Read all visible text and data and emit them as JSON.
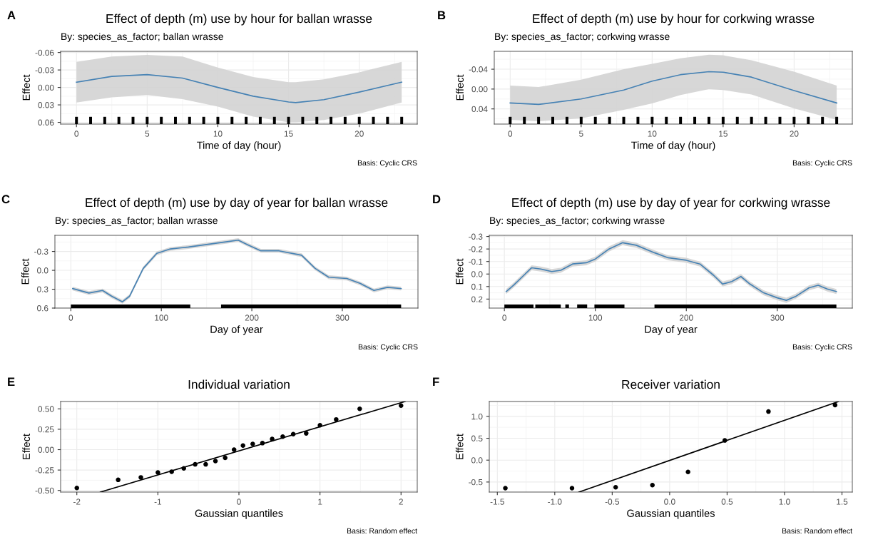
{
  "chart_data": [
    {
      "type": "line",
      "title": "Effect of depth (m) use by hour for ballan wrasse",
      "subtitle": "By: species_as_factor; ballan wrasse",
      "xlabel": "Time of day (hour)",
      "ylabel": "Effect",
      "annotations": [
        "A",
        "Basis: Cyclic CRS"
      ],
      "xlim": [
        -1.12,
        24.1
      ],
      "ylim": [
        0.063,
        -0.062
      ],
      "xticks": [
        0,
        5,
        10,
        15,
        20
      ],
      "yticks": [
        -0.06,
        -0.03,
        {
          "value": 0,
          "label": "0.00"
        },
        0.03,
        0.06
      ],
      "grid": true,
      "series": [
        {
          "color": "#4682b4",
          "x": [
            0,
            2.5,
            5,
            7.5,
            10,
            12.5,
            15,
            15.5,
            17.5,
            20,
            23
          ],
          "values": [
            -0.009,
            -0.019,
            -0.022,
            -0.016,
            0.0,
            0.015,
            0.025,
            0.026,
            0.021,
            0.008,
            -0.009
          ],
          "lower": [
            -0.044,
            -0.053,
            -0.056,
            -0.053,
            -0.034,
            -0.018,
            -0.009,
            -0.009,
            -0.014,
            -0.026,
            -0.044
          ],
          "upper": [
            0.026,
            0.017,
            0.013,
            0.02,
            0.033,
            0.05,
            0.06,
            0.06,
            0.056,
            0.045,
            0.026
          ]
        }
      ],
      "bands": [
        {
          "axis": "x",
          "from": -0.1,
          "to": 0.1,
          "color": "#000000"
        },
        {
          "axis": "x",
          "from": 0.9,
          "to": 1.1,
          "color": "#000000"
        },
        {
          "axis": "x",
          "from": 1.9,
          "to": 2.1,
          "color": "#000000"
        },
        {
          "axis": "x",
          "from": 2.9,
          "to": 3.1,
          "color": "#000000"
        },
        {
          "axis": "x",
          "from": 3.9,
          "to": 4.1,
          "color": "#000000"
        },
        {
          "axis": "x",
          "from": 4.9,
          "to": 5.1,
          "color": "#000000"
        },
        {
          "axis": "x",
          "from": 5.9,
          "to": 6.1,
          "color": "#000000"
        },
        {
          "axis": "x",
          "from": 6.9,
          "to": 7.1,
          "color": "#000000"
        },
        {
          "axis": "x",
          "from": 7.9,
          "to": 8.1,
          "color": "#000000"
        },
        {
          "axis": "x",
          "from": 8.9,
          "to": 9.1,
          "color": "#000000"
        },
        {
          "axis": "x",
          "from": 9.9,
          "to": 10.1,
          "color": "#000000"
        },
        {
          "axis": "x",
          "from": 10.9,
          "to": 11.1,
          "color": "#000000"
        },
        {
          "axis": "x",
          "from": 11.9,
          "to": 12.1,
          "color": "#000000"
        },
        {
          "axis": "x",
          "from": 12.9,
          "to": 13.1,
          "color": "#000000"
        },
        {
          "axis": "x",
          "from": 13.9,
          "to": 14.1,
          "color": "#000000"
        },
        {
          "axis": "x",
          "from": 14.9,
          "to": 15.1,
          "color": "#000000"
        },
        {
          "axis": "x",
          "from": 15.9,
          "to": 16.1,
          "color": "#000000"
        },
        {
          "axis": "x",
          "from": 16.9,
          "to": 17.1,
          "color": "#000000"
        },
        {
          "axis": "x",
          "from": 17.9,
          "to": 18.1,
          "color": "#000000"
        },
        {
          "axis": "x",
          "from": 18.9,
          "to": 19.1,
          "color": "#000000"
        },
        {
          "axis": "x",
          "from": 19.9,
          "to": 20.1,
          "color": "#000000"
        },
        {
          "axis": "x",
          "from": 20.9,
          "to": 21.1,
          "color": "#000000"
        },
        {
          "axis": "x",
          "from": 21.9,
          "to": 22.1,
          "color": "#000000"
        },
        {
          "axis": "x",
          "from": 22.9,
          "to": 23.1,
          "color": "#000000"
        }
      ]
    },
    {
      "type": "line",
      "title": "Effect of depth (m) use by hour for corkwing wrasse",
      "subtitle": "By: species_as_factor; corkwing wrasse",
      "xlabel": "Time of day (hour)",
      "ylabel": "Effect",
      "annotations": [
        "B",
        "Basis: Cyclic CRS"
      ],
      "xlim": [
        -1.12,
        24.1
      ],
      "ylim": [
        0.0706,
        -0.076
      ],
      "xticks": [
        0,
        5,
        10,
        15,
        20
      ],
      "yticks": [
        -0.04,
        {
          "value": 0,
          "label": "0.00"
        },
        0.04
      ],
      "grid": true,
      "series": [
        {
          "color": "#4682b4",
          "x": [
            0,
            2,
            5,
            8,
            10,
            12,
            14,
            15,
            17,
            20,
            23
          ],
          "values": [
            0.028,
            0.031,
            0.02,
            0.002,
            -0.016,
            -0.029,
            -0.035,
            -0.034,
            -0.024,
            0.003,
            0.028
          ],
          "lower": [
            -0.007,
            -0.004,
            -0.019,
            -0.04,
            -0.051,
            -0.062,
            -0.069,
            -0.068,
            -0.058,
            -0.035,
            -0.007
          ],
          "upper": [
            0.062,
            0.065,
            0.059,
            0.042,
            0.029,
            0.012,
            0.0,
            0.002,
            0.011,
            0.039,
            0.062
          ]
        }
      ],
      "bands": [
        {
          "axis": "x",
          "from": -0.1,
          "to": 0.1,
          "color": "#000000"
        },
        {
          "axis": "x",
          "from": 0.9,
          "to": 1.1,
          "color": "#000000"
        },
        {
          "axis": "x",
          "from": 1.9,
          "to": 2.1,
          "color": "#000000"
        },
        {
          "axis": "x",
          "from": 2.9,
          "to": 3.1,
          "color": "#000000"
        },
        {
          "axis": "x",
          "from": 3.9,
          "to": 4.1,
          "color": "#000000"
        },
        {
          "axis": "x",
          "from": 4.9,
          "to": 5.1,
          "color": "#000000"
        },
        {
          "axis": "x",
          "from": 5.9,
          "to": 6.1,
          "color": "#000000"
        },
        {
          "axis": "x",
          "from": 6.9,
          "to": 7.1,
          "color": "#000000"
        },
        {
          "axis": "x",
          "from": 7.9,
          "to": 8.1,
          "color": "#000000"
        },
        {
          "axis": "x",
          "from": 8.9,
          "to": 9.1,
          "color": "#000000"
        },
        {
          "axis": "x",
          "from": 9.9,
          "to": 10.1,
          "color": "#000000"
        },
        {
          "axis": "x",
          "from": 10.9,
          "to": 11.1,
          "color": "#000000"
        },
        {
          "axis": "x",
          "from": 11.9,
          "to": 12.1,
          "color": "#000000"
        },
        {
          "axis": "x",
          "from": 12.9,
          "to": 13.1,
          "color": "#000000"
        },
        {
          "axis": "x",
          "from": 13.9,
          "to": 14.1,
          "color": "#000000"
        },
        {
          "axis": "x",
          "from": 14.9,
          "to": 15.1,
          "color": "#000000"
        },
        {
          "axis": "x",
          "from": 15.9,
          "to": 16.1,
          "color": "#000000"
        },
        {
          "axis": "x",
          "from": 16.9,
          "to": 17.1,
          "color": "#000000"
        },
        {
          "axis": "x",
          "from": 17.9,
          "to": 18.1,
          "color": "#000000"
        },
        {
          "axis": "x",
          "from": 18.9,
          "to": 19.1,
          "color": "#000000"
        },
        {
          "axis": "x",
          "from": 19.9,
          "to": 20.1,
          "color": "#000000"
        },
        {
          "axis": "x",
          "from": 20.9,
          "to": 21.1,
          "color": "#000000"
        },
        {
          "axis": "x",
          "from": 21.9,
          "to": 22.1,
          "color": "#000000"
        },
        {
          "axis": "x",
          "from": 22.9,
          "to": 23.1,
          "color": "#000000"
        }
      ]
    },
    {
      "type": "line",
      "title": "Effect of depth (m) use by day of year for ballan wrasse",
      "subtitle": "By: species_as_factor; ballan wrasse",
      "xlabel": "Day of year",
      "ylabel": "Effect",
      "annotations": [
        "C",
        "Basis: Cyclic CRS"
      ],
      "xlim": [
        -17.6,
        383.6
      ],
      "ylim": [
        0.6,
        -0.556
      ],
      "xticks": [
        0,
        100,
        200,
        300
      ],
      "yticks": [
        -0.3,
        {
          "value": 0,
          "label": "0.0"
        },
        0.3,
        0.6
      ],
      "grid": true,
      "series": [
        {
          "color": "#4682b4",
          "x": [
            2,
            20,
            35,
            45,
            57,
            65,
            80,
            95,
            110,
            130,
            150,
            170,
            185,
            195,
            210,
            230,
            255,
            270,
            285,
            305,
            320,
            335,
            350,
            365
          ],
          "values": [
            0.29,
            0.36,
            0.32,
            0.41,
            0.5,
            0.41,
            -0.03,
            -0.27,
            -0.34,
            -0.37,
            -0.41,
            -0.45,
            -0.48,
            -0.41,
            -0.31,
            -0.31,
            -0.24,
            -0.03,
            0.11,
            0.13,
            0.21,
            0.32,
            0.27,
            0.29
          ],
          "lower": [
            0.26,
            0.33,
            0.29,
            0.38,
            0.47,
            0.38,
            -0.06,
            -0.3,
            -0.37,
            -0.4,
            -0.44,
            -0.48,
            -0.51,
            -0.44,
            -0.34,
            -0.34,
            -0.27,
            -0.06,
            0.08,
            0.1,
            0.18,
            0.29,
            0.24,
            0.26
          ],
          "upper": [
            0.32,
            0.39,
            0.35,
            0.44,
            0.53,
            0.44,
            0.0,
            -0.24,
            -0.31,
            -0.34,
            -0.38,
            -0.42,
            -0.45,
            -0.38,
            -0.28,
            -0.28,
            -0.21,
            0.0,
            0.14,
            0.16,
            0.24,
            0.35,
            0.3,
            0.32
          ]
        }
      ],
      "bands": [
        {
          "axis": "x",
          "from": 0,
          "to": 132,
          "color": "#000000"
        },
        {
          "axis": "x",
          "from": 166,
          "to": 365,
          "color": "#000000"
        }
      ]
    },
    {
      "type": "line",
      "title": "Effect of depth (m) use by day of year for corkwing wrasse",
      "subtitle": "By: species_as_factor; corkwing wrasse",
      "xlabel": "Day of year",
      "ylabel": "Effect",
      "annotations": [
        "D",
        "Basis: Cyclic CRS"
      ],
      "xlim": [
        -16.6,
        382.5
      ],
      "ylim": [
        0.272,
        -0.309
      ],
      "xticks": [
        0,
        100,
        200,
        300
      ],
      "yticks": [
        -0.3,
        -0.2,
        -0.1,
        {
          "value": 0,
          "label": "0.0"
        },
        0.1,
        0.2
      ],
      "grid": true,
      "series": [
        {
          "color": "#4682b4",
          "x": [
            2,
            10,
            20,
            30,
            40,
            52,
            62,
            75,
            90,
            100,
            115,
            130,
            145,
            165,
            180,
            200,
            215,
            230,
            240,
            250,
            260,
            270,
            285,
            300,
            310,
            320,
            335,
            345,
            355,
            365
          ],
          "values": [
            0.14,
            0.09,
            0.02,
            -0.05,
            -0.04,
            -0.02,
            -0.03,
            -0.08,
            -0.09,
            -0.12,
            -0.2,
            -0.25,
            -0.23,
            -0.17,
            -0.13,
            -0.11,
            -0.08,
            0.01,
            0.08,
            0.06,
            0.02,
            0.08,
            0.15,
            0.19,
            0.21,
            0.18,
            0.11,
            0.09,
            0.12,
            0.14
          ],
          "lower": [
            0.12,
            0.07,
            0.0,
            -0.07,
            -0.06,
            -0.04,
            -0.05,
            -0.1,
            -0.11,
            -0.14,
            -0.22,
            -0.27,
            -0.25,
            -0.19,
            -0.15,
            -0.13,
            -0.1,
            -0.01,
            0.06,
            0.04,
            0.0,
            0.06,
            0.13,
            0.17,
            0.19,
            0.16,
            0.09,
            0.07,
            0.1,
            0.12
          ],
          "upper": [
            0.16,
            0.11,
            0.04,
            -0.03,
            -0.02,
            0.0,
            -0.01,
            -0.06,
            -0.07,
            -0.1,
            -0.18,
            -0.23,
            -0.21,
            -0.15,
            -0.11,
            -0.09,
            -0.06,
            0.03,
            0.1,
            0.08,
            0.04,
            0.1,
            0.17,
            0.21,
            0.23,
            0.2,
            0.13,
            0.11,
            0.14,
            0.16
          ]
        }
      ],
      "bands": [
        {
          "axis": "x",
          "from": 0,
          "to": 32,
          "color": "#000000"
        },
        {
          "axis": "x",
          "from": 34,
          "to": 62,
          "color": "#000000"
        },
        {
          "axis": "x",
          "from": 67,
          "to": 71,
          "color": "#000000"
        },
        {
          "axis": "x",
          "from": 80,
          "to": 91,
          "color": "#000000"
        },
        {
          "axis": "x",
          "from": 99,
          "to": 132,
          "color": "#000000"
        },
        {
          "axis": "x",
          "from": 165,
          "to": 365,
          "color": "#000000"
        }
      ]
    },
    {
      "type": "scatter",
      "title": "Individual variation",
      "xlabel": "Gaussian quantiles",
      "ylabel": "Effect",
      "annotations": [
        "E",
        "Basis: Random effect"
      ],
      "xlim": [
        -2.2,
        2.2
      ],
      "ylim": [
        -0.52,
        0.59
      ],
      "xticks": [
        -2,
        -1,
        0,
        1,
        2
      ],
      "yticks": [
        {
          "value": -0.5,
          "label": "-0.50"
        },
        -0.25,
        {
          "value": 0,
          "label": "0.00"
        },
        0.25,
        {
          "value": 0.5,
          "label": "0.50"
        }
      ],
      "grid": true,
      "series": [
        {
          "marker": "circle",
          "color": "#000000",
          "x": [
            -2.0,
            -1.49,
            -1.21,
            -1.0,
            -0.83,
            -0.68,
            -0.54,
            -0.41,
            -0.29,
            -0.17,
            -0.06,
            0.05,
            0.17,
            0.29,
            0.41,
            0.54,
            0.67,
            0.83,
            1.0,
            1.2,
            1.49,
            2.0
          ],
          "values": [
            -0.47,
            -0.37,
            -0.34,
            -0.28,
            -0.27,
            -0.23,
            -0.18,
            -0.18,
            -0.14,
            -0.1,
            0.0,
            0.05,
            0.07,
            0.08,
            0.13,
            0.16,
            0.19,
            0.2,
            0.3,
            0.37,
            0.5,
            0.54
          ]
        },
        {
          "type": "line",
          "color": "#000000",
          "x": [
            -1.71,
            2.05
          ],
          "values": [
            -0.52,
            0.59
          ]
        }
      ]
    },
    {
      "type": "scatter",
      "title": "Receiver variation",
      "xlabel": "Gaussian quantiles",
      "ylabel": "Effect",
      "annotations": [
        "F",
        "Basis: Random effect"
      ],
      "xlim": [
        -1.57,
        1.59
      ],
      "ylim": [
        -0.73,
        1.34
      ],
      "xticks": [
        {
          "value": -1.5,
          "label": "-1.5"
        },
        {
          "value": -1,
          "label": "-1.0"
        },
        {
          "value": -0.5,
          "label": "-0.5"
        },
        {
          "value": 0,
          "label": "0.0"
        },
        0.5,
        {
          "value": 1,
          "label": "1.0"
        },
        1.5
      ],
      "yticks": [
        -0.5,
        {
          "value": 0,
          "label": "0.0"
        },
        0.5,
        {
          "value": 1,
          "label": "1.0"
        }
      ],
      "grid": true,
      "series": [
        {
          "marker": "circle",
          "color": "#000000",
          "x": [
            -1.43,
            -0.85,
            -0.47,
            -0.15,
            0.16,
            0.48,
            0.86,
            1.44
          ],
          "values": [
            -0.64,
            -0.64,
            -0.62,
            -0.57,
            -0.27,
            0.45,
            1.11,
            1.26
          ]
        },
        {
          "type": "line",
          "color": "#000000",
          "x": [
            -0.79,
            1.47
          ],
          "values": [
            -0.73,
            1.34
          ]
        }
      ]
    }
  ]
}
